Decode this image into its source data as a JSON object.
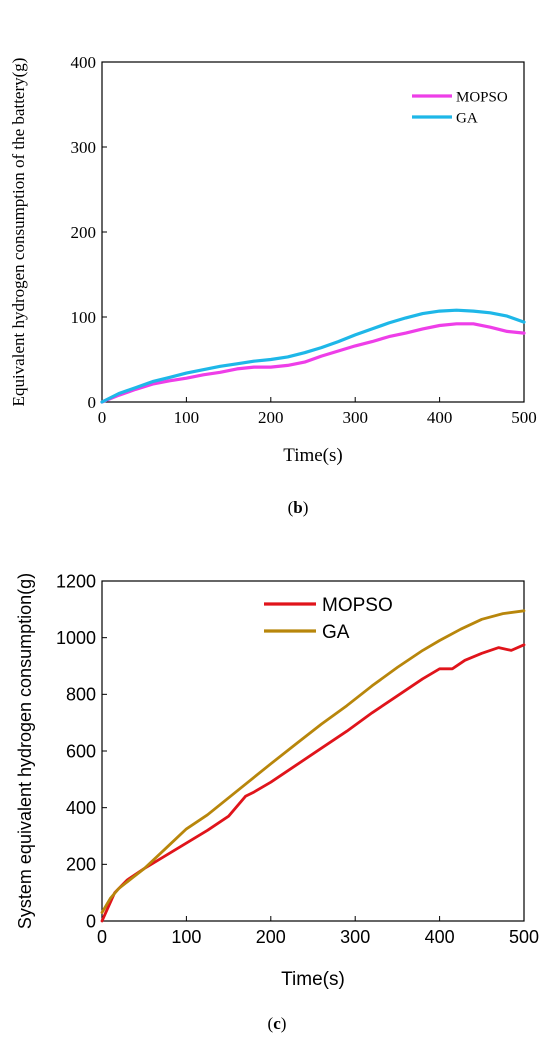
{
  "charts": [
    {
      "id": "b",
      "caption": "(b)",
      "caption_letter": "b",
      "chart_data": {
        "type": "line",
        "title": "",
        "xlabel": "Time(s)",
        "ylabel": "Equivalent hydrogen consumption of the battery(g)",
        "xlim": [
          0,
          500
        ],
        "ylim": [
          0,
          400
        ],
        "xticks": [
          "0",
          "100",
          "200",
          "300",
          "400",
          "500"
        ],
        "yticks": [
          "0",
          "100",
          "200",
          "300",
          "400"
        ],
        "legend": "top-right",
        "series": [
          {
            "name": "MOPSO",
            "color": "#ee3ee8",
            "x": [
              0,
              20,
              40,
              60,
              80,
              100,
              120,
              140,
              160,
              180,
              200,
              220,
              240,
              260,
              280,
              300,
              320,
              340,
              360,
              380,
              400,
              420,
              440,
              460,
              480,
              500
            ],
            "y": [
              0,
              8,
              15,
              21,
              25,
              28,
              32,
              35,
              39,
              41,
              41,
              43,
              47,
              54,
              60,
              66,
              71,
              77,
              81,
              86,
              90,
              92,
              92,
              88,
              83,
              81
            ]
          },
          {
            "name": "GA",
            "color": "#1eb7e8",
            "x": [
              0,
              20,
              40,
              60,
              80,
              100,
              120,
              140,
              160,
              180,
              200,
              220,
              240,
              260,
              280,
              300,
              320,
              340,
              360,
              380,
              400,
              420,
              440,
              460,
              480,
              500
            ],
            "y": [
              0,
              10,
              17,
              24,
              29,
              34,
              38,
              42,
              45,
              48,
              50,
              53,
              58,
              64,
              71,
              79,
              86,
              93,
              99,
              104,
              107,
              108,
              107,
              105,
              101,
              94
            ]
          }
        ]
      }
    },
    {
      "id": "c",
      "caption": "(c)",
      "caption_letter": "c",
      "chart_data": {
        "type": "line",
        "title": "",
        "xlabel": "Time(s)",
        "ylabel": "System equivalent hydrogen consumption(g)",
        "xlim": [
          0,
          500
        ],
        "ylim": [
          0,
          1200
        ],
        "xticks": [
          "0",
          "100",
          "200",
          "300",
          "400",
          "500"
        ],
        "yticks": [
          "0",
          "200",
          "400",
          "600",
          "800",
          "1000",
          "1200"
        ],
        "legend": "top-left",
        "series": [
          {
            "name": "MOPSO",
            "color": "#e0141b",
            "x": [
              0,
              15,
              30,
              50,
              75,
              100,
              125,
              150,
              170,
              180,
              200,
              230,
              260,
              290,
              320,
              350,
              380,
              400,
              415,
              430,
              450,
              470,
              485,
              500
            ],
            "y": [
              0,
              100,
              145,
              185,
              230,
              275,
              320,
              370,
              440,
              455,
              490,
              550,
              610,
              670,
              735,
              795,
              855,
              890,
              890,
              920,
              945,
              965,
              955,
              975
            ]
          },
          {
            "name": "GA",
            "color": "#b8860b",
            "x": [
              0,
              10,
              20,
              35,
              50,
              75,
              100,
              125,
              150,
              175,
              200,
              230,
              260,
              290,
              320,
              350,
              380,
              400,
              425,
              450,
              475,
              500
            ],
            "y": [
              30,
              80,
              115,
              150,
              185,
              255,
              325,
              375,
              435,
              495,
              555,
              625,
              695,
              760,
              830,
              895,
              955,
              990,
              1030,
              1065,
              1085,
              1095
            ]
          }
        ]
      }
    }
  ]
}
